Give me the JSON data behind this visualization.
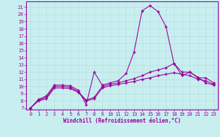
{
  "xlabel": "Windchill (Refroidissement éolien,°C)",
  "background_color": "#c8eef0",
  "line_color": "#990099",
  "grid_color": "#b8dfe0",
  "x_ticks": [
    0,
    1,
    2,
    3,
    4,
    5,
    6,
    7,
    8,
    9,
    10,
    11,
    12,
    13,
    14,
    15,
    16,
    17,
    18,
    19,
    20,
    21,
    22,
    23
  ],
  "y_ticks": [
    7,
    8,
    9,
    10,
    11,
    12,
    13,
    14,
    15,
    16,
    17,
    18,
    19,
    20,
    21
  ],
  "ylim": [
    6.8,
    21.8
  ],
  "xlim": [
    -0.5,
    23.5
  ],
  "curve1_x": [
    0,
    1,
    2,
    3,
    4,
    5,
    6,
    7,
    8,
    9,
    10,
    11,
    12,
    13,
    14,
    15,
    16,
    17,
    18,
    19,
    20,
    21,
    22,
    23
  ],
  "curve1_y": [
    7.0,
    8.2,
    8.7,
    10.2,
    10.2,
    10.1,
    9.5,
    7.5,
    12.0,
    10.2,
    10.5,
    10.8,
    11.8,
    14.8,
    20.5,
    21.2,
    20.4,
    18.3,
    13.2,
    11.5,
    12.0,
    11.3,
    10.5,
    10.2
  ],
  "curve2_x": [
    0,
    1,
    2,
    3,
    4,
    5,
    6,
    7,
    8,
    9,
    10,
    11,
    12,
    13,
    14,
    15,
    16,
    17,
    18,
    19,
    20,
    21,
    22,
    23
  ],
  "curve2_y": [
    7.0,
    8.1,
    8.5,
    10.0,
    10.0,
    9.9,
    9.3,
    8.1,
    8.5,
    10.0,
    10.3,
    10.5,
    10.8,
    11.1,
    11.5,
    12.0,
    12.3,
    12.6,
    13.2,
    12.0,
    12.0,
    11.2,
    11.2,
    10.5
  ],
  "curve3_x": [
    0,
    1,
    2,
    3,
    4,
    5,
    6,
    7,
    8,
    9,
    10,
    11,
    12,
    13,
    14,
    15,
    16,
    17,
    18,
    19,
    20,
    21,
    22,
    23
  ],
  "curve3_y": [
    7.0,
    8.0,
    8.3,
    9.8,
    9.8,
    9.7,
    9.2,
    8.0,
    8.3,
    9.8,
    10.1,
    10.3,
    10.5,
    10.7,
    11.0,
    11.2,
    11.5,
    11.7,
    11.9,
    11.7,
    11.5,
    11.0,
    10.8,
    10.3
  ]
}
